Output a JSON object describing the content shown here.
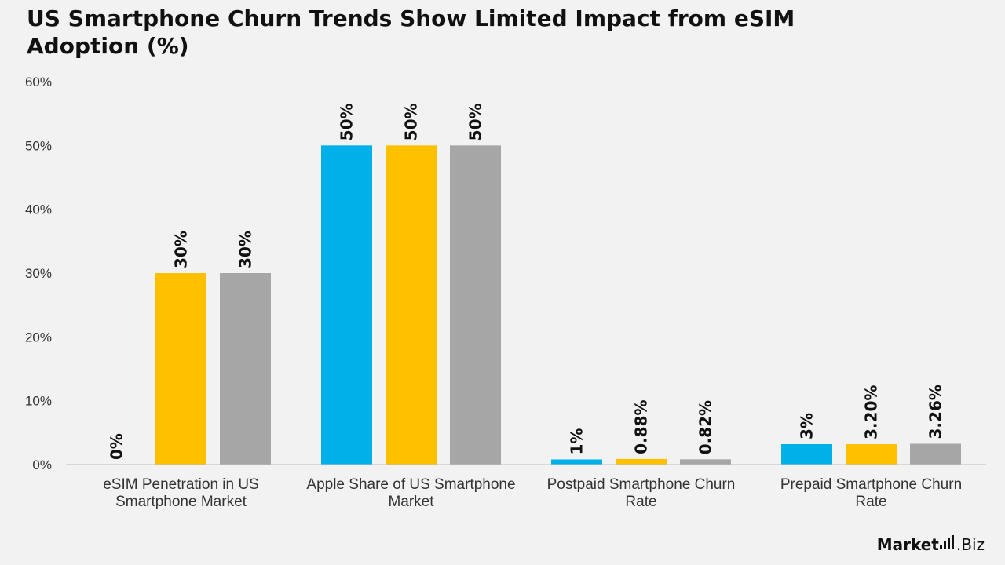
{
  "title": "US Smartphone Churn Trends Show Limited Impact from eSIM Adoption (%)",
  "logo": {
    "brand": "Market",
    "suffix": ".Biz"
  },
  "chart_data": {
    "type": "bar",
    "categories": [
      [
        "eSIM Penetration in US",
        "Smartphone Market"
      ],
      [
        "Apple Share of US Smartphone",
        "Market"
      ],
      [
        "Postpaid Smartphone Churn",
        "Rate"
      ],
      [
        "Prepaid Smartphone Churn",
        "Rate"
      ]
    ],
    "series": [
      {
        "color": "#00b0e8",
        "values": [
          0,
          50,
          0.8,
          3.2
        ],
        "labels": [
          "0%",
          "50%",
          "1%",
          "3%"
        ]
      },
      {
        "color": "#ffc000",
        "values": [
          30,
          50,
          0.88,
          3.2
        ],
        "labels": [
          "30%",
          "50%",
          "0.88%",
          "3.20%"
        ]
      },
      {
        "color": "#a6a6a6",
        "values": [
          30,
          50,
          0.82,
          3.26
        ],
        "labels": [
          "30%",
          "50%",
          "0.82%",
          "3.26%"
        ]
      }
    ],
    "yticks": [
      "0%",
      "10%",
      "20%",
      "30%",
      "40%",
      "50%",
      "60%"
    ],
    "ylim": [
      0,
      60
    ],
    "legend": "none",
    "grid": false
  }
}
